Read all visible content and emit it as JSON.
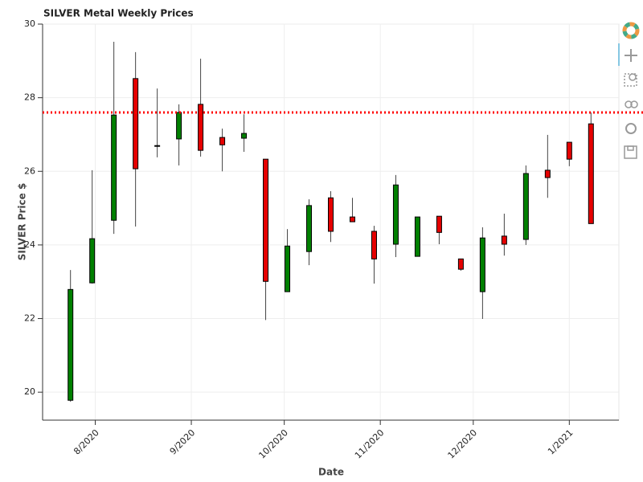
{
  "chart_data": {
    "type": "candlestick",
    "title": "SILVER Metal Weekly Prices",
    "x_label": "Date",
    "y_label": "SILVER Price $",
    "x": [
      "2020-07-24",
      "2020-07-31",
      "2020-08-07",
      "2020-08-14",
      "2020-08-21",
      "2020-08-28",
      "2020-09-04",
      "2020-09-11",
      "2020-09-18",
      "2020-09-25",
      "2020-10-02",
      "2020-10-09",
      "2020-10-16",
      "2020-10-23",
      "2020-10-30",
      "2020-11-06",
      "2020-11-13",
      "2020-11-20",
      "2020-11-27",
      "2020-12-04",
      "2020-12-11",
      "2020-12-18",
      "2020-12-25",
      "2021-01-01",
      "2021-01-08"
    ],
    "open": [
      19.78,
      22.97,
      24.67,
      28.52,
      26.7,
      26.88,
      27.82,
      26.92,
      26.9,
      26.33,
      22.73,
      23.82,
      25.28,
      24.76,
      24.37,
      24.02,
      23.69,
      24.78,
      23.62,
      22.73,
      24.24,
      24.15,
      26.03,
      26.79,
      27.29
    ],
    "high": [
      23.32,
      26.03,
      29.52,
      29.24,
      28.25,
      27.82,
      29.06,
      27.16,
      27.55,
      26.33,
      24.43,
      25.24,
      25.46,
      25.28,
      24.52,
      25.9,
      24.76,
      24.78,
      23.62,
      24.48,
      24.85,
      26.16,
      26.99,
      26.79,
      27.6
    ],
    "low": [
      19.74,
      22.95,
      24.3,
      24.5,
      26.38,
      26.16,
      26.4,
      26.0,
      26.53,
      21.96,
      22.73,
      23.45,
      24.08,
      24.63,
      22.95,
      23.67,
      23.69,
      24.02,
      23.3,
      21.99,
      23.71,
      24.0,
      25.28,
      26.14,
      24.58
    ],
    "close": [
      22.79,
      24.17,
      27.53,
      26.07,
      26.68,
      27.6,
      26.57,
      26.72,
      27.03,
      23.01,
      23.97,
      25.07,
      24.37,
      24.63,
      23.62,
      25.63,
      24.76,
      24.34,
      23.34,
      24.19,
      24.02,
      25.94,
      25.83,
      26.33,
      24.58
    ],
    "increasing_color": "#008000",
    "decreasing_color": "#e60000",
    "reference_line": 27.6,
    "reference_color": "#ff0000",
    "xlim": [
      "2020-07-15",
      "2021-01-17"
    ],
    "xticks": [
      {
        "value": "2020-08-01",
        "label": "8/2020"
      },
      {
        "value": "2020-09-01",
        "label": "9/2020"
      },
      {
        "value": "2020-10-01",
        "label": "10/2020"
      },
      {
        "value": "2020-11-01",
        "label": "11/2020"
      },
      {
        "value": "2020-12-01",
        "label": "12/2020"
      },
      {
        "value": "2021-01-01",
        "label": "1/2021"
      }
    ],
    "ylim": [
      19.24,
      30
    ],
    "yticks": [
      20,
      22,
      24,
      26,
      28,
      30
    ],
    "grid": true
  }
}
